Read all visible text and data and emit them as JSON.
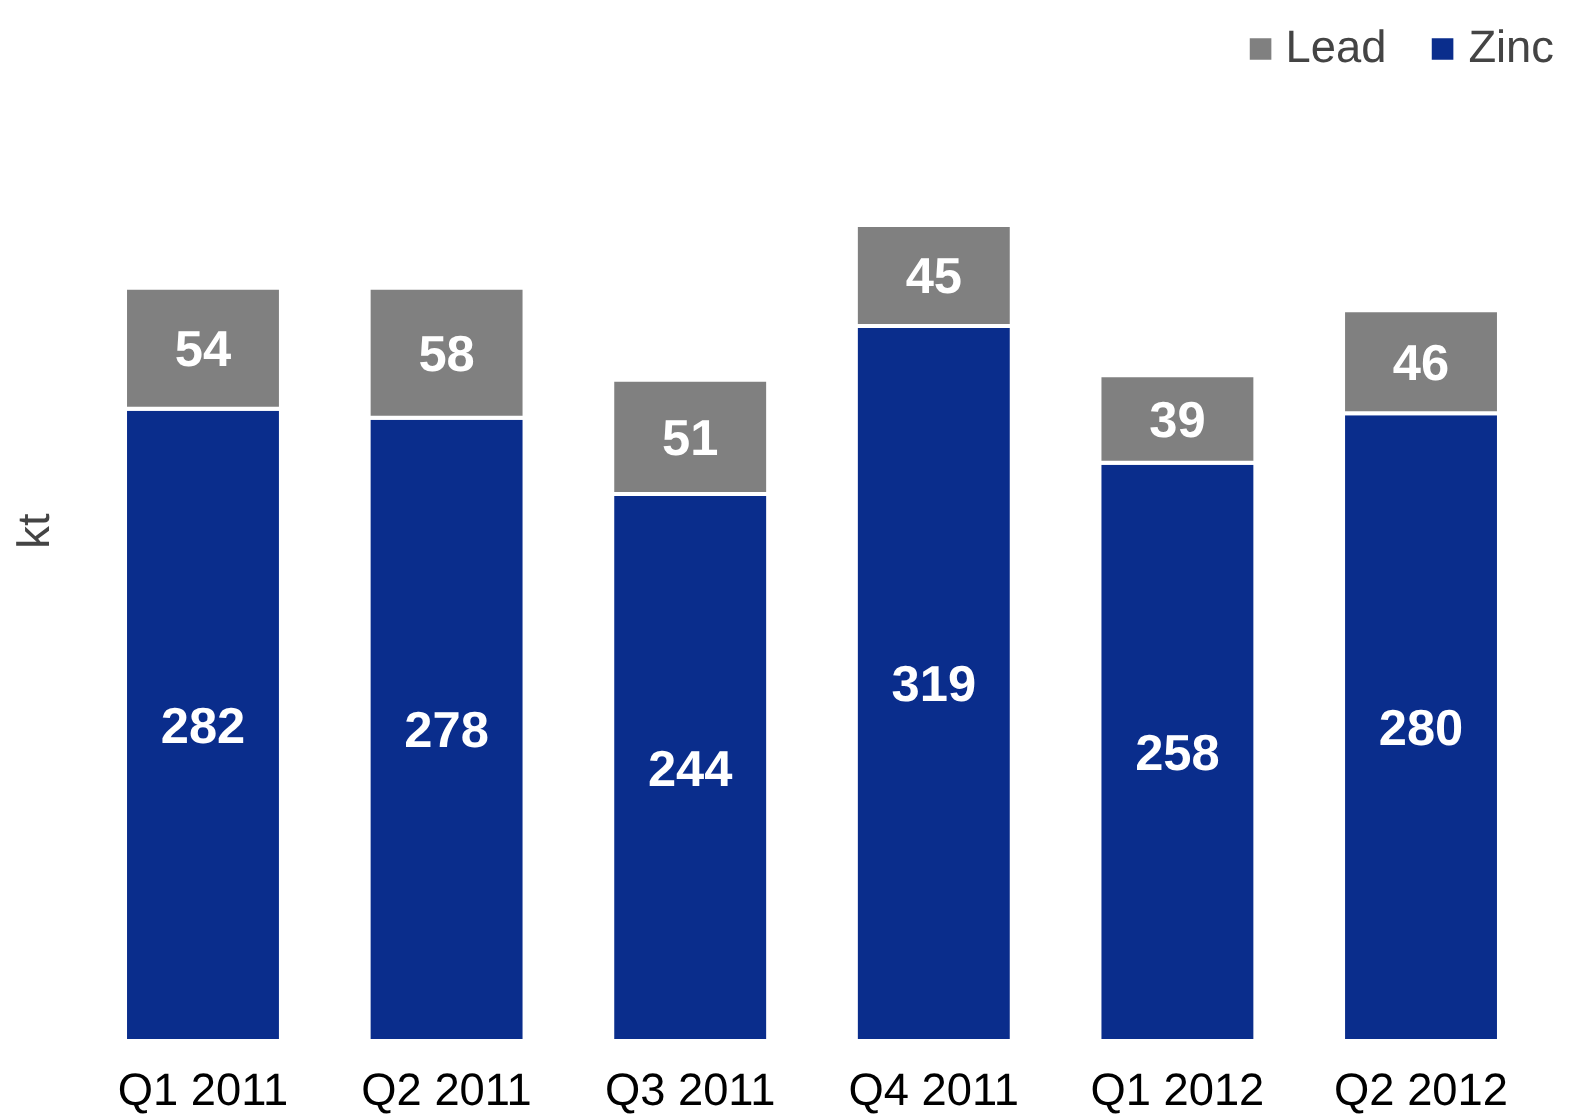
{
  "chart_data": {
    "type": "bar",
    "stacked": true,
    "ylabel": "kt",
    "categories": [
      "Q1 2011",
      "Q2 2011",
      "Q3 2011",
      "Q4 2011",
      "Q1 2012",
      "Q2 2012"
    ],
    "series": [
      {
        "name": "Zinc",
        "color": "#0a2d8c",
        "values": [
          282,
          278,
          244,
          319,
          258,
          280
        ]
      },
      {
        "name": "Lead",
        "color": "#808080",
        "values": [
          54,
          58,
          51,
          45,
          39,
          46
        ]
      }
    ],
    "data_labels": true,
    "legend": "top right",
    "grid": false
  }
}
